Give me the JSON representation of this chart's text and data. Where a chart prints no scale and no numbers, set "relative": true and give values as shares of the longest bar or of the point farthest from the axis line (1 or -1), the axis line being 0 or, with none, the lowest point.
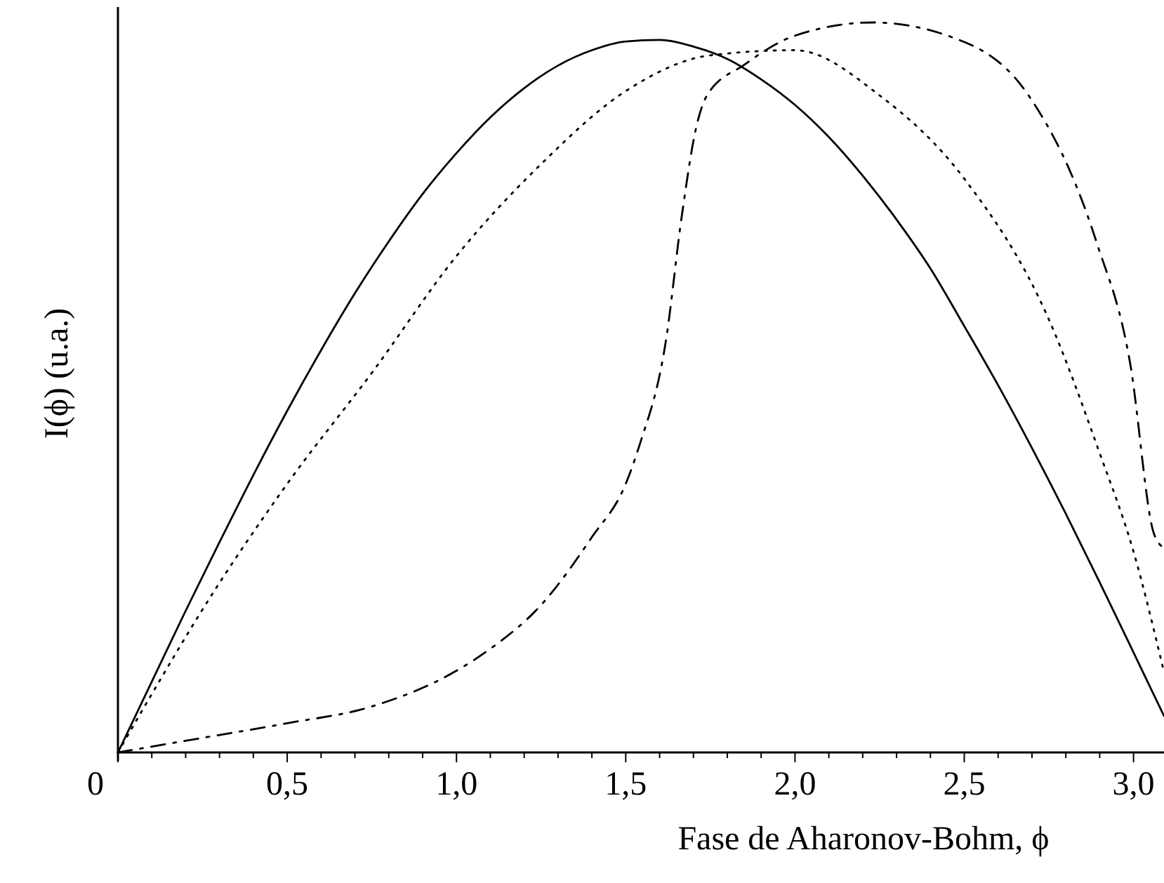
{
  "chart_data": {
    "type": "line",
    "relative": true,
    "xlabel": "Fase de Aharonov-Bohm, ϕ",
    "ylabel": "I(ϕ) (u.a.)",
    "xlim": [
      0,
      3.09
    ],
    "xticks": [
      0,
      {
        "value": 0.1,
        "label": null
      },
      {
        "value": 0.2,
        "label": null
      },
      {
        "value": 0.3,
        "label": null
      },
      {
        "value": 0.4,
        "label": null
      },
      {
        "value": 0.5,
        "label": "0,5"
      },
      {
        "value": 0.6,
        "label": null
      },
      {
        "value": 0.7,
        "label": null
      },
      {
        "value": 0.8,
        "label": null
      },
      {
        "value": 0.9,
        "label": null
      },
      {
        "value": 1.0,
        "label": "1,0"
      },
      {
        "value": 1.1,
        "label": null
      },
      {
        "value": 1.2,
        "label": null
      },
      {
        "value": 1.3,
        "label": null
      },
      {
        "value": 1.4,
        "label": null
      },
      {
        "value": 1.5,
        "label": "1,5"
      },
      {
        "value": 1.6,
        "label": null
      },
      {
        "value": 1.7,
        "label": null
      },
      {
        "value": 1.8,
        "label": null
      },
      {
        "value": 1.9,
        "label": null
      },
      {
        "value": 2.0,
        "label": "2,0"
      },
      {
        "value": 2.1,
        "label": null
      },
      {
        "value": 2.2,
        "label": null
      },
      {
        "value": 2.3,
        "label": null
      },
      {
        "value": 2.4,
        "label": null
      },
      {
        "value": 2.5,
        "label": "2,5"
      },
      {
        "value": 2.6,
        "label": null
      },
      {
        "value": 2.7,
        "label": null
      },
      {
        "value": 2.8,
        "label": null
      },
      {
        "value": 2.9,
        "label": null
      },
      {
        "value": 3.0,
        "label": "3,0"
      }
    ],
    "grid": false,
    "series": [
      {
        "color": "#000000",
        "line_style": "solid",
        "x": [
          0,
          0.1,
          0.2,
          0.3,
          0.4,
          0.5,
          0.6,
          0.7,
          0.8,
          0.9,
          1.0,
          1.1,
          1.2,
          1.3,
          1.4,
          1.5,
          1.6,
          1.7,
          1.8,
          1.9,
          2.0,
          2.1,
          2.2,
          2.3,
          2.4,
          2.5,
          2.6,
          2.7,
          2.8,
          2.9,
          3.0,
          3.09
        ],
        "values": [
          0,
          0.097,
          0.194,
          0.288,
          0.38,
          0.468,
          0.551,
          0.629,
          0.7,
          0.765,
          0.821,
          0.87,
          0.91,
          0.941,
          0.962,
          0.974,
          0.976,
          0.967,
          0.95,
          0.922,
          0.887,
          0.843,
          0.79,
          0.73,
          0.663,
          0.584,
          0.503,
          0.417,
          0.327,
          0.233,
          0.137,
          0.05
        ]
      },
      {
        "color": "#000000",
        "line_style": "dotted",
        "x": [
          0,
          0.1,
          0.25,
          0.5,
          0.75,
          1.0,
          1.25,
          1.5,
          1.75,
          2.0,
          2.25,
          2.5,
          2.75,
          2.9,
          3.0,
          3.09
        ],
        "values": [
          0,
          0.08,
          0.196,
          0.368,
          0.52,
          0.68,
          0.806,
          0.906,
          0.955,
          0.962,
          0.9,
          0.786,
          0.593,
          0.41,
          0.275,
          0.11
        ]
      },
      {
        "color": "#000000",
        "line_style": "dashed",
        "x": [
          0,
          0.25,
          0.5,
          0.75,
          1.0,
          1.1,
          1.25,
          1.4,
          1.5,
          1.54,
          1.62,
          1.665,
          1.71,
          1.74,
          1.85,
          2.0,
          2.23,
          2.45,
          2.69,
          2.89,
          2.99,
          3.06,
          3.09
        ],
        "values": [
          0,
          0.02,
          0.04,
          0.063,
          0.112,
          0.142,
          0.202,
          0.295,
          0.368,
          0.42,
          0.568,
          0.733,
          0.86,
          0.9,
          0.942,
          0.982,
          1.0,
          0.982,
          0.9,
          0.7,
          0.533,
          0.3,
          0.28
        ]
      }
    ]
  }
}
